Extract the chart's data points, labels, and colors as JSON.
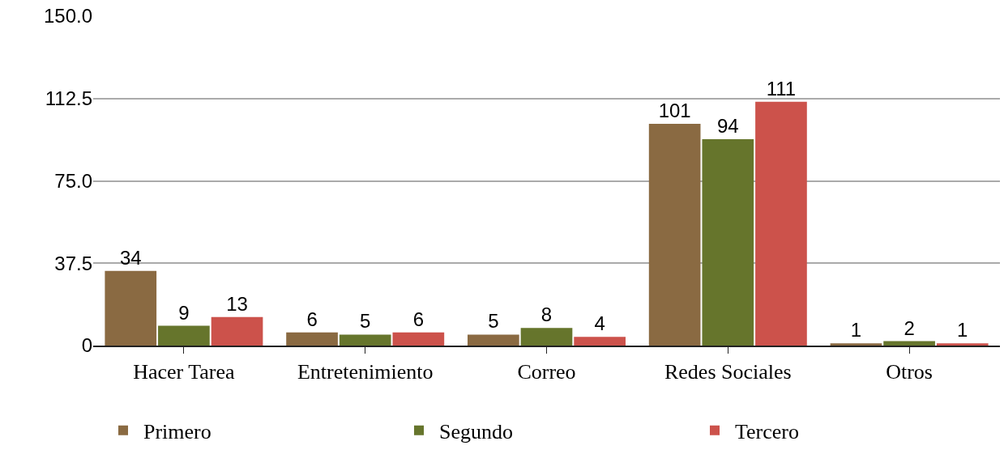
{
  "chart_data": {
    "type": "bar",
    "categories": [
      "Hacer Tarea",
      "Entretenimiento",
      "Correo",
      "Redes Sociales",
      "Otros"
    ],
    "series": [
      {
        "name": "Primero",
        "color": "#8a6a42",
        "values": [
          34,
          6,
          5,
          101,
          1
        ]
      },
      {
        "name": "Segundo",
        "color": "#66752c",
        "values": [
          9,
          5,
          8,
          94,
          2
        ]
      },
      {
        "name": "Tercero",
        "color": "#cc524b",
        "values": [
          13,
          6,
          4,
          111,
          1
        ]
      }
    ],
    "ylim": [
      0,
      150
    ],
    "yticks": [
      0,
      37.5,
      {
        "value": 75,
        "label": "75.0"
      },
      112.5,
      {
        "value": 150,
        "label": "150.0"
      }
    ],
    "grid": "y",
    "legend": "bottom",
    "data_labels": true
  }
}
